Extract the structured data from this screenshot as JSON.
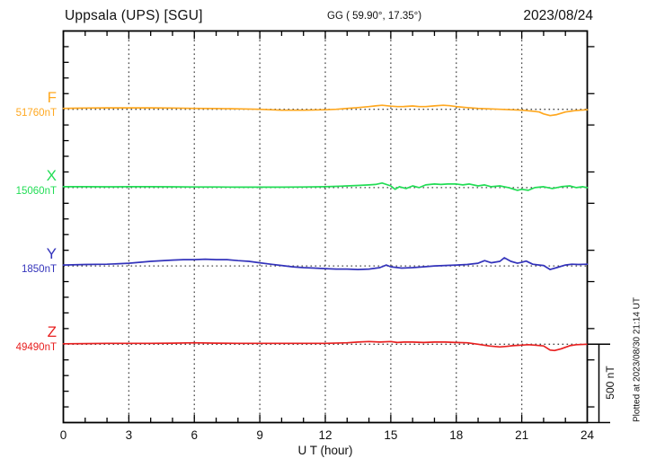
{
  "header": {
    "station": "Uppsala (UPS)  [SGU]",
    "coords": "GG ( 59.90°,  17.35°)",
    "date": "2023/08/24"
  },
  "x_axis": {
    "label": "U T (hour)",
    "tick_labels": [
      "0",
      "3",
      "6",
      "9",
      "12",
      "15",
      "18",
      "21",
      "24"
    ],
    "range_hours": [
      0,
      24
    ],
    "minor_tick_every_hours": 1,
    "major_tick_every_hours": 3
  },
  "scale_bar": {
    "label": "500 nT",
    "span_nT": 500
  },
  "plot_note": "Plotted at 2023/08/30 21:14 UT",
  "colors": {
    "F": "#FFA820",
    "X": "#22DD55",
    "Y": "#3333BB",
    "Z": "#E82020",
    "frame": "#000000",
    "grid": "#444444"
  },
  "chart_data": {
    "type": "line",
    "title": "Uppsala (UPS) [SGU] magnetogram for 2023/08/24",
    "xlabel": "U T (hour)",
    "x_range": [
      0,
      24
    ],
    "y_division_nT": 500,
    "grid": "dotted vertical lines every 3 h; dotted horizontal baseline per component",
    "legend_position": "left margin, one colored label per trace",
    "offsets_unit": "nT deviation from baseline value",
    "series": [
      {
        "name": "F",
        "baseline_label": "51760nT",
        "baseline_nT": 51760,
        "color": "#FFA820",
        "points": [
          [
            0,
            6
          ],
          [
            0.5,
            7
          ],
          [
            1,
            8
          ],
          [
            2,
            9
          ],
          [
            3,
            9
          ],
          [
            4,
            9
          ],
          [
            5,
            8
          ],
          [
            6,
            6
          ],
          [
            7,
            5
          ],
          [
            8,
            3
          ],
          [
            9,
            0
          ],
          [
            9.5,
            -3
          ],
          [
            10,
            -6
          ],
          [
            11,
            -6
          ],
          [
            12,
            -3
          ],
          [
            12.5,
            0
          ],
          [
            13,
            6
          ],
          [
            13.5,
            11
          ],
          [
            14,
            17
          ],
          [
            14.3,
            22
          ],
          [
            14.6,
            26
          ],
          [
            15,
            20
          ],
          [
            15.3,
            17
          ],
          [
            15.6,
            18
          ],
          [
            16,
            21
          ],
          [
            16.3,
            17
          ],
          [
            16.6,
            17
          ],
          [
            17,
            22
          ],
          [
            17.4,
            26
          ],
          [
            17.7,
            23
          ],
          [
            18,
            17
          ],
          [
            18.5,
            11
          ],
          [
            19,
            6
          ],
          [
            19.5,
            3
          ],
          [
            20,
            0
          ],
          [
            20.5,
            -3
          ],
          [
            21,
            -6
          ],
          [
            21.5,
            -12
          ],
          [
            21.8,
            -17
          ],
          [
            22,
            -29
          ],
          [
            22.3,
            -40
          ],
          [
            22.6,
            -34
          ],
          [
            23,
            -17
          ],
          [
            23.4,
            -9
          ],
          [
            23.7,
            -6
          ],
          [
            24,
            -3
          ]
        ]
      },
      {
        "name": "X",
        "baseline_label": "15060nT",
        "baseline_nT": 15060,
        "color": "#22DD55",
        "points": [
          [
            0,
            6
          ],
          [
            0.5,
            6
          ],
          [
            1,
            6
          ],
          [
            2,
            5
          ],
          [
            3,
            6
          ],
          [
            4,
            6
          ],
          [
            5,
            5
          ],
          [
            6,
            4
          ],
          [
            7,
            4
          ],
          [
            8,
            3
          ],
          [
            9,
            3
          ],
          [
            10,
            3
          ],
          [
            11,
            4
          ],
          [
            12,
            6
          ],
          [
            12.5,
            8
          ],
          [
            13,
            11
          ],
          [
            13.5,
            14
          ],
          [
            14,
            17
          ],
          [
            14.3,
            20
          ],
          [
            14.6,
            29
          ],
          [
            15,
            11
          ],
          [
            15.2,
            -11
          ],
          [
            15.4,
            6
          ],
          [
            15.7,
            -6
          ],
          [
            16,
            11
          ],
          [
            16.3,
            0
          ],
          [
            16.6,
            17
          ],
          [
            17,
            23
          ],
          [
            17.3,
            20
          ],
          [
            17.6,
            23
          ],
          [
            18,
            23
          ],
          [
            18.3,
            17
          ],
          [
            18.6,
            23
          ],
          [
            19,
            11
          ],
          [
            19.3,
            17
          ],
          [
            19.6,
            6
          ],
          [
            20,
            11
          ],
          [
            20.4,
            0
          ],
          [
            20.8,
            -17
          ],
          [
            21,
            -11
          ],
          [
            21.3,
            -17
          ],
          [
            21.6,
            0
          ],
          [
            22,
            6
          ],
          [
            22.4,
            -6
          ],
          [
            22.8,
            6
          ],
          [
            23.2,
            11
          ],
          [
            23.5,
            0
          ],
          [
            23.8,
            6
          ],
          [
            24,
            0
          ]
        ]
      },
      {
        "name": "Y",
        "baseline_label": "1850nT",
        "baseline_nT": 1850,
        "color": "#3333BB",
        "points": [
          [
            0,
            6
          ],
          [
            1,
            9
          ],
          [
            2,
            11
          ],
          [
            3,
            17
          ],
          [
            4,
            29
          ],
          [
            5,
            37
          ],
          [
            5.5,
            40
          ],
          [
            6,
            40
          ],
          [
            6.5,
            43
          ],
          [
            7,
            40
          ],
          [
            7.5,
            40
          ],
          [
            8,
            34
          ],
          [
            8.5,
            29
          ],
          [
            9,
            20
          ],
          [
            9.5,
            11
          ],
          [
            10,
            3
          ],
          [
            10.5,
            -6
          ],
          [
            11,
            -11
          ],
          [
            11.5,
            -14
          ],
          [
            12,
            -17
          ],
          [
            12.5,
            -20
          ],
          [
            13,
            -20
          ],
          [
            13.5,
            -23
          ],
          [
            14,
            -20
          ],
          [
            14.5,
            -11
          ],
          [
            14.8,
            6
          ],
          [
            15,
            -6
          ],
          [
            15.5,
            -14
          ],
          [
            16,
            -11
          ],
          [
            16.5,
            -6
          ],
          [
            17,
            0
          ],
          [
            17.5,
            3
          ],
          [
            18,
            6
          ],
          [
            18.5,
            9
          ],
          [
            19,
            17
          ],
          [
            19.3,
            34
          ],
          [
            19.6,
            20
          ],
          [
            20,
            29
          ],
          [
            20.2,
            52
          ],
          [
            20.5,
            29
          ],
          [
            20.8,
            17
          ],
          [
            21,
            23
          ],
          [
            21.2,
            31
          ],
          [
            21.5,
            11
          ],
          [
            21.8,
            6
          ],
          [
            22,
            3
          ],
          [
            22.3,
            -23
          ],
          [
            22.6,
            -11
          ],
          [
            23,
            6
          ],
          [
            23.3,
            11
          ],
          [
            23.6,
            9
          ],
          [
            24,
            11
          ]
        ]
      },
      {
        "name": "Z",
        "baseline_label": "49490nT",
        "baseline_nT": 49490,
        "color": "#E82020",
        "points": [
          [
            0,
            3
          ],
          [
            1,
            4
          ],
          [
            2,
            6
          ],
          [
            3,
            6
          ],
          [
            4,
            6
          ],
          [
            5,
            7
          ],
          [
            6,
            9
          ],
          [
            7,
            7
          ],
          [
            8,
            6
          ],
          [
            9,
            6
          ],
          [
            10,
            6
          ],
          [
            11,
            6
          ],
          [
            12,
            6
          ],
          [
            13,
            9
          ],
          [
            13.5,
            14
          ],
          [
            14,
            17
          ],
          [
            14.5,
            14
          ],
          [
            15,
            17
          ],
          [
            15.3,
            11
          ],
          [
            15.6,
            14
          ],
          [
            16,
            14
          ],
          [
            16.5,
            11
          ],
          [
            17,
            14
          ],
          [
            17.5,
            14
          ],
          [
            18,
            11
          ],
          [
            18.5,
            9
          ],
          [
            19,
            0
          ],
          [
            19.5,
            -11
          ],
          [
            20,
            -17
          ],
          [
            20.3,
            -14
          ],
          [
            20.6,
            -9
          ],
          [
            21,
            -6
          ],
          [
            21.3,
            -3
          ],
          [
            21.6,
            -6
          ],
          [
            22,
            -11
          ],
          [
            22.3,
            -37
          ],
          [
            22.5,
            -40
          ],
          [
            22.8,
            -29
          ],
          [
            23.2,
            -9
          ],
          [
            23.5,
            -3
          ],
          [
            24,
            0
          ]
        ]
      }
    ]
  }
}
